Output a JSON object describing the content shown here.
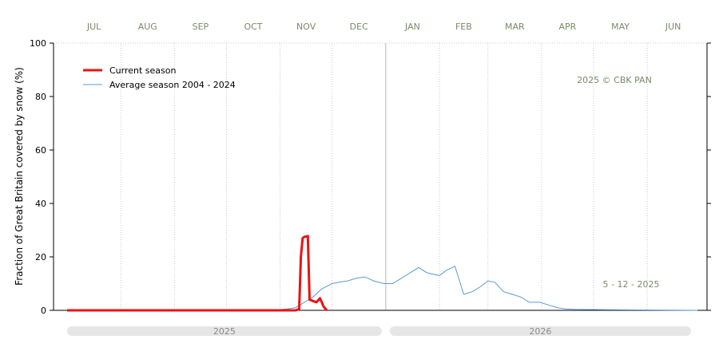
{
  "chart_data": {
    "type": "line",
    "ylabel": "Fraction of  Great Britain  covered by snow (%)",
    "ylim": [
      0,
      100
    ],
    "yticks": [
      0,
      20,
      40,
      60,
      80,
      100
    ],
    "months": [
      "JUL",
      "AUG",
      "SEP",
      "OCT",
      "NOV",
      "DEC",
      "JAN",
      "FEB",
      "MAR",
      "APR",
      "MAY",
      "JUN"
    ],
    "years": [
      "2025",
      "2026"
    ],
    "annotation_source": "2025  © CBK PAN",
    "annotation_date": "5 - 12 - 2025",
    "legend_position": "top-left",
    "grid": "vertical dotted at month boundaries, solid at year boundary",
    "colors": {
      "current": "#ee1111",
      "average": "#5b9bd5"
    },
    "series": [
      {
        "name": "Current season",
        "points": [
          [
            "Jul 1",
            0
          ],
          [
            "Nov 10",
            0
          ],
          [
            "Nov 12",
            0.5
          ],
          [
            "Nov 13",
            20
          ],
          [
            "Nov 14",
            27
          ],
          [
            "Nov 15",
            27.5
          ],
          [
            "Nov 17",
            27.8
          ],
          [
            "Nov 18",
            4
          ],
          [
            "Nov 20",
            3.5
          ],
          [
            "Nov 22",
            3
          ],
          [
            "Nov 24",
            4.5
          ],
          [
            "Nov 25",
            3.2
          ],
          [
            "Nov 26",
            1.5
          ],
          [
            "Nov 28",
            0
          ]
        ]
      },
      {
        "name": "Average season 2004 - 2024",
        "points": [
          [
            "Jul 1",
            0
          ],
          [
            "Oct 15",
            0
          ],
          [
            "Oct 31",
            0.2
          ],
          [
            "Nov 5",
            0.5
          ],
          [
            "Nov 10",
            1
          ],
          [
            "Nov 15",
            3
          ],
          [
            "Nov 20",
            5
          ],
          [
            "Nov 25",
            8
          ],
          [
            "Dec 1",
            10
          ],
          [
            "Dec 5",
            10.5
          ],
          [
            "Dec 10",
            11
          ],
          [
            "Dec 15",
            12
          ],
          [
            "Dec 20",
            12.5
          ],
          [
            "Dec 25",
            11
          ],
          [
            "Dec 31",
            10
          ],
          [
            "Jan 5",
            10
          ],
          [
            "Jan 10",
            12
          ],
          [
            "Jan 15",
            14
          ],
          [
            "Jan 20",
            16
          ],
          [
            "Jan 25",
            14
          ],
          [
            "Feb 1",
            13
          ],
          [
            "Feb 5",
            15
          ],
          [
            "Feb 10",
            16.5
          ],
          [
            "Feb 15",
            6
          ],
          [
            "Feb 20",
            7
          ],
          [
            "Feb 25",
            9
          ],
          [
            "Mar 1",
            11
          ],
          [
            "Mar 5",
            10.5
          ],
          [
            "Mar 10",
            7
          ],
          [
            "Mar 15",
            6
          ],
          [
            "Mar 20",
            5
          ],
          [
            "Mar 25",
            3
          ],
          [
            "Mar 31",
            3
          ],
          [
            "Apr 5",
            2
          ],
          [
            "Apr 10",
            1
          ],
          [
            "Apr 15",
            0.5
          ],
          [
            "Apr 20",
            0.4
          ],
          [
            "May 1",
            0.3
          ],
          [
            "May 10",
            0.2
          ],
          [
            "Jun 30",
            0
          ]
        ]
      }
    ]
  }
}
